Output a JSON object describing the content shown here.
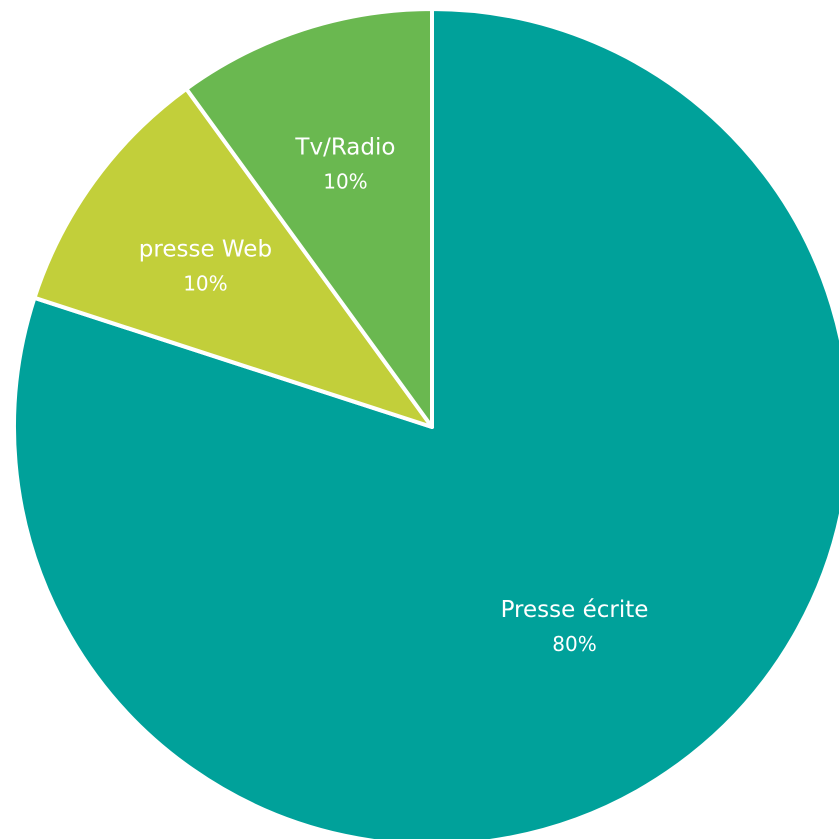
{
  "chart_data": {
    "type": "pie",
    "title": "",
    "slices": [
      {
        "label": "Presse écrite",
        "value": 80,
        "display": "80%",
        "color": "#00a19a"
      },
      {
        "label": "presse Web",
        "value": 10,
        "display": "10%",
        "color": "#c2cf3a"
      },
      {
        "label": "Tv/Radio",
        "value": 10,
        "display": "10%",
        "color": "#6ab850"
      }
    ],
    "start_angle_deg": 0,
    "direction": "clockwise",
    "legend": "none"
  }
}
